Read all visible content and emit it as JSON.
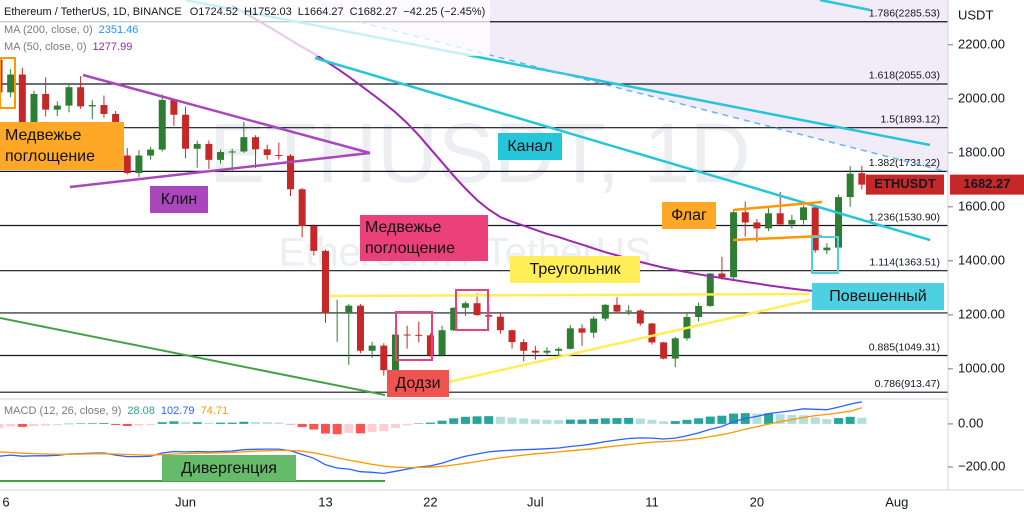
{
  "header": {
    "title": "Ethereum / TetherUS, 1D, BINANCE",
    "ohlc_labels": [
      "O",
      "H",
      "L",
      "C"
    ],
    "change": "−42.25 (−2.45%)"
  },
  "watermark": {
    "main": "ETHUSDT, 1D",
    "sub": "Ethereum / TetherUS"
  },
  "annotations": {
    "bearish_left": [
      "Медвежье",
      "поглощение"
    ],
    "wedge": "Клин",
    "channel": "Канал",
    "bearish_mid": [
      "Медвежье",
      "поглощение"
    ],
    "triangle": "Треугольник",
    "flag": "Флаг",
    "hanging_man": "Повешенный",
    "doji": "Додзи",
    "divergence": "Дивергенция"
  },
  "chart_data": [
    {
      "type": "candlestick",
      "symbol": "ETHUSDT",
      "unit": "USDT",
      "up_color": "#2e7d32",
      "down_color": "#c62828",
      "categories": [
        "6",
        null,
        null,
        null,
        null,
        null,
        null,
        null,
        null,
        null,
        null,
        null,
        null,
        null,
        null,
        null,
        "Jun",
        null,
        null,
        null,
        null,
        null,
        null,
        null,
        null,
        null,
        null,
        null,
        "13",
        null,
        null,
        null,
        null,
        null,
        null,
        null,
        null,
        "22",
        null,
        null,
        null,
        null,
        null,
        null,
        null,
        null,
        "Jul",
        null,
        null,
        null,
        null,
        null,
        null,
        null,
        null,
        null,
        "11",
        null,
        null,
        null,
        null,
        null,
        null,
        null,
        null,
        "20",
        null,
        null,
        null,
        null,
        null,
        null,
        null,
        null,
        null,
        null,
        null,
        "Aug"
      ],
      "open": [
        2145,
        2024,
        2090,
        1912,
        2018,
        1960,
        1975,
        2043,
        1972,
        1977,
        1944,
        1790,
        1725,
        1790,
        1812,
        1996,
        1941,
        1815,
        1833,
        1774,
        1803,
        1805,
        1858,
        1813,
        1792,
        1789,
        1665,
        1529,
        1437,
        1206,
        1210,
        1234,
        1067,
        1086,
        995,
        1127,
        1126,
        1124,
        1051,
        1143,
        1226,
        1243,
        1199,
        1193,
        1143,
        1099,
        1067,
        1060,
        1067,
        1074,
        1150,
        1134,
        1186,
        1237,
        1212,
        1216,
        1168,
        1098,
        1038,
        1113,
        1192,
        1233,
        1353,
        1339,
        1580,
        1542,
        1520,
        1576,
        1535,
        1551,
        1598,
        1439,
        1449,
        1636,
        1724.52,
        null,
        null,
        null
      ],
      "high": [
        2160,
        2110,
        2115,
        2030,
        2080,
        1990,
        2055,
        2084,
        1995,
        2012,
        1955,
        1818,
        1810,
        1822,
        2016,
        1997,
        1972,
        1845,
        1846,
        1812,
        1815,
        1915,
        1865,
        1830,
        1838,
        1795,
        1670,
        1535,
        1442,
        1256,
        1240,
        1240,
        1100,
        1095,
        1152,
        1160,
        1175,
        1132,
        1160,
        1228,
        1250,
        1280,
        1237,
        1211,
        1145,
        1110,
        1085,
        1080,
        1080,
        1162,
        1165,
        1195,
        1240,
        1265,
        1235,
        1220,
        1170,
        1100,
        1118,
        1210,
        1245,
        1355,
        1415,
        1585,
        1620,
        1555,
        1595,
        1655,
        1570,
        1605,
        1600,
        1465,
        1645,
        1750,
        1752.03,
        null,
        null,
        null
      ],
      "low": [
        1996,
        2006,
        1906,
        1872,
        1935,
        1936,
        1950,
        1963,
        1925,
        1930,
        1752,
        1720,
        1710,
        1775,
        1805,
        1900,
        1780,
        1745,
        1740,
        1760,
        1735,
        1800,
        1744,
        1775,
        1775,
        1640,
        1487,
        1420,
        1170,
        1100,
        1015,
        1058,
        1040,
        975,
        985,
        1075,
        1098,
        1045,
        1045,
        1140,
        1196,
        1196,
        1180,
        1130,
        1075,
        1028,
        1034,
        1050,
        1040,
        1072,
        1085,
        1115,
        1178,
        1205,
        1200,
        1160,
        1090,
        1035,
        1006,
        1105,
        1175,
        1230,
        1330,
        1330,
        1490,
        1470,
        1510,
        1535,
        1520,
        1535,
        1430,
        1425,
        1445,
        1600,
        1664.27,
        null,
        null,
        null
      ],
      "close": [
        2024,
        2090,
        1912,
        2018,
        1960,
        1975,
        2043,
        1972,
        1977,
        1944,
        1790,
        1725,
        1790,
        1812,
        1996,
        1941,
        1815,
        1833,
        1774,
        1803,
        1805,
        1858,
        1813,
        1792,
        1789,
        1665,
        1529,
        1437,
        1206,
        1210,
        1234,
        1067,
        1086,
        995,
        1127,
        1126,
        1124,
        1051,
        1143,
        1226,
        1243,
        1199,
        1193,
        1143,
        1099,
        1067,
        1060,
        1067,
        1074,
        1150,
        1134,
        1186,
        1237,
        1212,
        1216,
        1168,
        1098,
        1038,
        1113,
        1192,
        1233,
        1353,
        1339,
        1580,
        1542,
        1520,
        1576,
        1535,
        1551,
        1598,
        1439,
        1449,
        1636,
        1723,
        1682.27,
        null,
        null,
        null
      ],
      "series": [
        {
          "name": "MA (200, close, 0)",
          "color": "#2196f3",
          "last": 2351.46
        },
        {
          "name": "MA (50, close, 0)",
          "color": "#9c27b0",
          "values": [
            null,
            null,
            null,
            null,
            null,
            null,
            null,
            null,
            null,
            null,
            null,
            null,
            null,
            null,
            null,
            null,
            null,
            null,
            null,
            null,
            2345,
            2320,
            2295,
            2270,
            2245,
            2218,
            2192,
            2168,
            2140,
            2112,
            2082,
            2050,
            2018,
            1985,
            1950,
            1910,
            1865,
            1815,
            1765,
            1715,
            1668,
            1625,
            1590,
            1562,
            1545,
            1530,
            1515,
            1500,
            1488,
            1474,
            1460,
            1446,
            1432,
            1420,
            1408,
            1396,
            1385,
            1375,
            1366,
            1358,
            1350,
            1343,
            1336,
            1329,
            1322,
            1316,
            1309,
            1303,
            1297,
            1292,
            1288,
            1285,
            1282,
            1280,
            1277.99,
            null,
            null,
            null
          ]
        }
      ],
      "levels": [
        {
          "value": 2285.53,
          "label": "1.786(2285.53)"
        },
        {
          "value": 2055.03,
          "label": "1.618(2055.03)"
        },
        {
          "value": 1893.12,
          "label": "1.5(1893.12)"
        },
        {
          "value": 1731.22,
          "label": "1.382(1731.22)"
        },
        {
          "value": 1530.9,
          "label": "1.236(1530.90)"
        },
        {
          "value": 1363.51,
          "label": "1.114(1363.51)"
        },
        {
          "value": 1207
        },
        {
          "value": 1049.31,
          "label": "0.885(1049.31)"
        },
        {
          "value": 913.47,
          "label": "0.786(913.47)"
        }
      ],
      "ylim": [
        892,
        2366
      ],
      "yticks": [
        {
          "value": 1000,
          "label": "1000.00"
        },
        {
          "value": 1200,
          "label": "1200.00"
        },
        {
          "value": 1400,
          "label": "1400.00"
        },
        {
          "value": 1600,
          "label": "1600.00"
        },
        {
          "value": 1800,
          "label": "1800.00"
        },
        {
          "value": 2000,
          "label": "2000.00"
        },
        {
          "value": 2200,
          "label": "2200.00"
        }
      ]
    },
    {
      "type": "macd",
      "title": "MACD (12, 26, close, 9)",
      "hist_colors": [
        "#26a69a",
        "#b2dfdb",
        "#ff5252",
        "#ffcdd2"
      ],
      "series": [
        {
          "kind": "histogram",
          "color": "#26a69a",
          "values": [
            -20,
            -12,
            -14,
            -10,
            -8,
            -5,
            1,
            2,
            3,
            4,
            -5,
            -10,
            -8,
            -5,
            8,
            12,
            8,
            8,
            5,
            6,
            6,
            10,
            9,
            8,
            6,
            -2,
            -15,
            -26,
            -45,
            -48,
            -42,
            -44,
            -37,
            -34,
            -19,
            -7,
            2,
            6,
            15,
            26,
            33,
            35,
            36,
            33,
            29,
            25,
            21,
            19,
            18,
            20,
            20,
            23,
            26,
            27,
            28,
            25,
            19,
            12,
            13,
            19,
            26,
            34,
            38,
            48,
            50,
            48,
            49,
            45,
            42,
            40,
            30,
            22,
            27,
            33,
            28.08,
            null,
            null,
            null
          ]
        },
        {
          "kind": "line",
          "color": "#2962ff",
          "values": [
            -150,
            -145,
            -150,
            -148,
            -148,
            -146,
            -140,
            -138,
            -136,
            -135,
            -145,
            -152,
            -152,
            -150,
            -135,
            -128,
            -130,
            -128,
            -130,
            -128,
            -126,
            -120,
            -118,
            -117,
            -117,
            -125,
            -142,
            -160,
            -190,
            -205,
            -210,
            -222,
            -225,
            -230,
            -220,
            -210,
            -200,
            -195,
            -182,
            -165,
            -150,
            -140,
            -130,
            -125,
            -122,
            -120,
            -118,
            -115,
            -112,
            -105,
            -100,
            -92,
            -82,
            -75,
            -68,
            -65,
            -66,
            -70,
            -66,
            -55,
            -42,
            -25,
            -12,
            10,
            25,
            35,
            48,
            55,
            62,
            70,
            68,
            66,
            78,
            92,
            102.79,
            null,
            null,
            null
          ]
        },
        {
          "kind": "line",
          "color": "#ff9800",
          "values": [
            -130,
            -133,
            -136,
            -138,
            -140,
            -141,
            -141,
            -140,
            -139,
            -139,
            -140,
            -142,
            -144,
            -145,
            -143,
            -140,
            -138,
            -136,
            -135,
            -134,
            -132,
            -130,
            -127,
            -125,
            -123,
            -123,
            -127,
            -134,
            -145,
            -157,
            -168,
            -178,
            -188,
            -196,
            -201,
            -203,
            -202,
            -201,
            -197,
            -191,
            -183,
            -175,
            -166,
            -158,
            -151,
            -145,
            -139,
            -134,
            -130,
            -125,
            -120,
            -115,
            -108,
            -102,
            -96,
            -90,
            -85,
            -82,
            -79,
            -74,
            -68,
            -59,
            -50,
            -38,
            -25,
            -13,
            -1,
            10,
            20,
            30,
            38,
            44,
            51,
            59,
            74.71,
            null,
            null,
            null
          ]
        }
      ],
      "ylim": [
        -307,
        111
      ],
      "yticks": [
        {
          "value": -200,
          "label": "−200.00"
        },
        {
          "value": 0,
          "label": "0.00"
        }
      ]
    }
  ]
}
